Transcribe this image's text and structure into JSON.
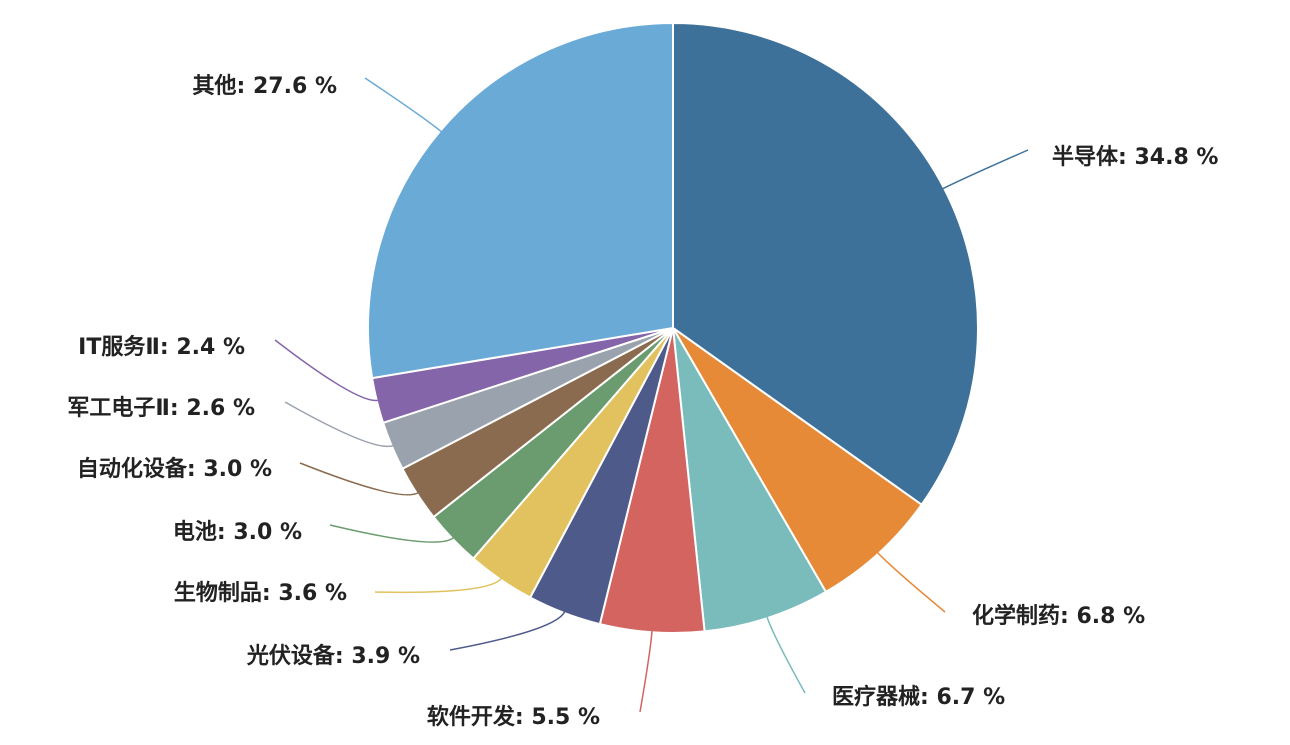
{
  "chart_data": {
    "type": "pie",
    "categories": [
      "半导体",
      "化学制药",
      "医疗器械",
      "软件开发",
      "光伏设备",
      "生物制品",
      "电池",
      "自动化设备",
      "军工电子Ⅱ",
      "IT服务Ⅱ",
      "其他"
    ],
    "values": [
      34.8,
      6.8,
      6.7,
      5.5,
      3.9,
      3.6,
      3.0,
      3.0,
      2.6,
      2.4,
      27.6
    ],
    "value_labels": [
      ": 34.8 %",
      ": 6.8 %",
      ": 6.7 %",
      ": 5.5 %",
      ": 3.9 %",
      ": 3.6 %",
      ": 3.0 %",
      ": 3.0 %",
      ": 2.6 %",
      ": 2.4 %",
      ": 27.6 %"
    ],
    "colors": [
      "#3e7199",
      "#e68a38",
      "#79bcbb",
      "#d36460",
      "#4d5a8a",
      "#e1c25e",
      "#6a9c6f",
      "#8a6b4f",
      "#9aa3ad",
      "#8565a9",
      "#6aaad6"
    ]
  }
}
